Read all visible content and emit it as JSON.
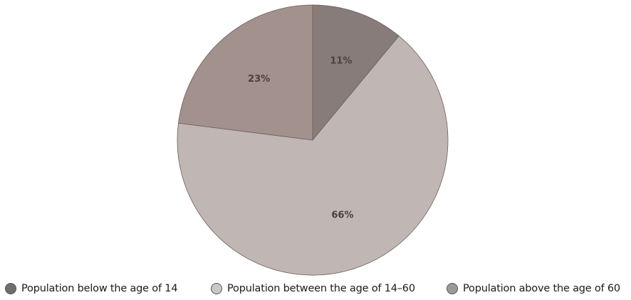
{
  "chart_data": {
    "type": "pie",
    "start_angle_deg": 0,
    "direction": "clockwise",
    "slices": [
      {
        "label": "Population below the age of 14",
        "value": 11,
        "display": "11%",
        "color": "#877c7a",
        "legend_color": "#6e6e6e"
      },
      {
        "label": "Population between the age of 14–60",
        "value": 66,
        "display": "66%",
        "color": "#c0b6b3",
        "legend_color": "#c8c8c8"
      },
      {
        "label": "Population above the age of 60",
        "value": 23,
        "display": "23%",
        "color": "#a2918d",
        "legend_color": "#9a9a9a"
      }
    ]
  }
}
